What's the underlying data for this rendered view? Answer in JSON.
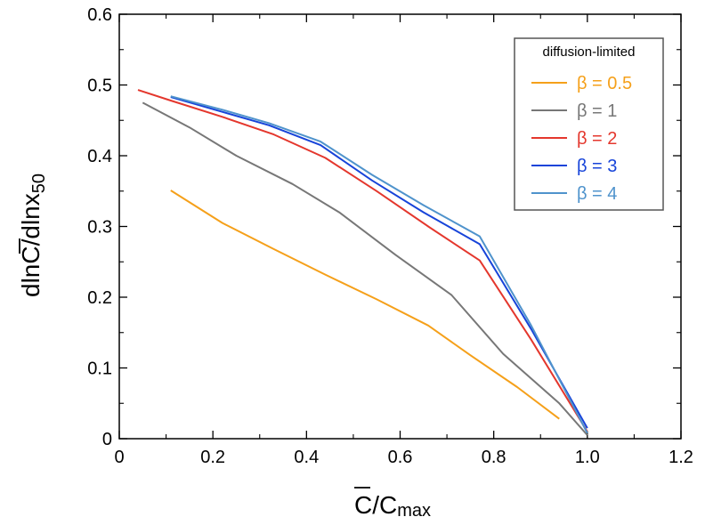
{
  "chart_data": {
    "type": "line",
    "title": "",
    "xlabel_main": "C",
    "xlabel_rest": "/C",
    "xlabel_sub": "max",
    "ylabel_pre": "dln",
    "ylabel_bar": "C",
    "ylabel_post": "/dlnx",
    "ylabel_sub": "50",
    "xlim": [
      0,
      1.2
    ],
    "ylim": [
      0,
      0.6
    ],
    "xticks": [
      0,
      0.2,
      0.4,
      0.6,
      0.8,
      1.0,
      1.2
    ],
    "xtick_labels": [
      "0",
      "0.2",
      "0.4",
      "0.6",
      "0.8",
      "1.0",
      "1.2"
    ],
    "yticks": [
      0,
      0.1,
      0.2,
      0.3,
      0.4,
      0.5,
      0.6
    ],
    "ytick_labels": [
      "0",
      "0.1",
      "0.2",
      "0.3",
      "0.4",
      "0.5",
      "0.6"
    ],
    "legend_title": "diffusion-limited",
    "legend_position": "top-right",
    "series": [
      {
        "name": "β = 0.5",
        "color": "#f5a01a",
        "x": [
          0.11,
          0.22,
          0.33,
          0.44,
          0.55,
          0.66,
          0.75,
          0.85,
          0.94
        ],
        "y": [
          0.351,
          0.305,
          0.268,
          0.232,
          0.197,
          0.16,
          0.118,
          0.073,
          0.028
        ]
      },
      {
        "name": "β = 1",
        "color": "#777777",
        "x": [
          0.05,
          0.15,
          0.25,
          0.37,
          0.47,
          0.59,
          0.71,
          0.82,
          0.94,
          1.0
        ],
        "y": [
          0.475,
          0.44,
          0.4,
          0.36,
          0.32,
          0.26,
          0.203,
          0.12,
          0.05,
          0.005
        ]
      },
      {
        "name": "β = 2",
        "color": "#e4372d",
        "x": [
          0.04,
          0.11,
          0.22,
          0.33,
          0.44,
          0.55,
          0.66,
          0.77,
          0.88,
          1.0
        ],
        "y": [
          0.493,
          0.478,
          0.455,
          0.43,
          0.397,
          0.35,
          0.3,
          0.252,
          0.14,
          0.01
        ]
      },
      {
        "name": "β = 3",
        "color": "#1744d9",
        "x": [
          0.11,
          0.22,
          0.32,
          0.43,
          0.54,
          0.65,
          0.77,
          0.88,
          1.0
        ],
        "y": [
          0.483,
          0.462,
          0.443,
          0.415,
          0.365,
          0.32,
          0.275,
          0.155,
          0.015
        ]
      },
      {
        "name": "β = 4",
        "color": "#4f93cc",
        "x": [
          0.11,
          0.22,
          0.32,
          0.43,
          0.54,
          0.65,
          0.77,
          0.88,
          1.0
        ],
        "y": [
          0.484,
          0.465,
          0.446,
          0.42,
          0.373,
          0.33,
          0.286,
          0.16,
          0.008
        ]
      }
    ]
  }
}
